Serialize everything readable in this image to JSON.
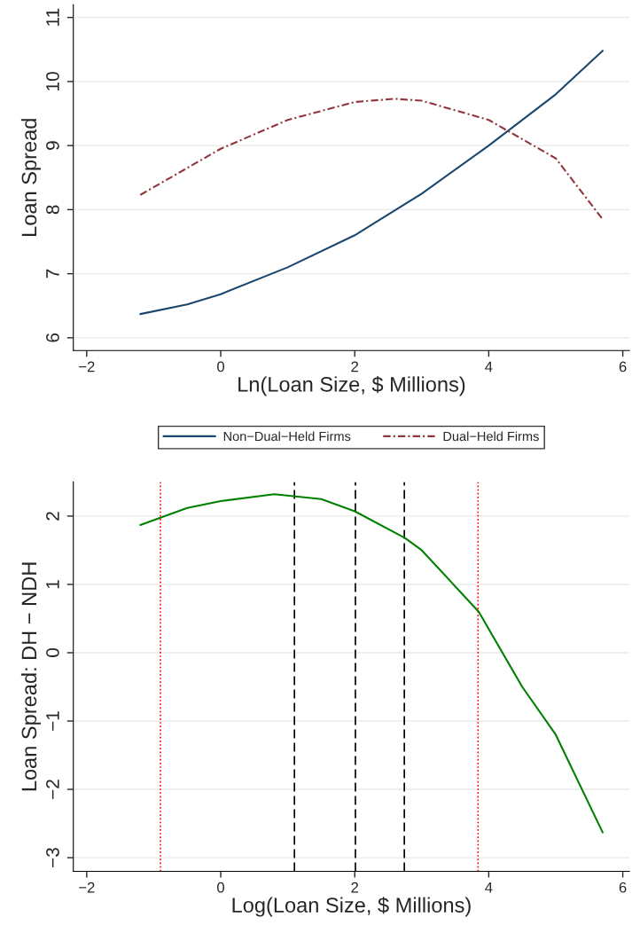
{
  "chart_data": [
    {
      "type": "line",
      "xlabel": "Ln(Loan Size, $ Millions)",
      "ylabel": "Loan Spread",
      "xlim": [
        -2.2,
        6.1
      ],
      "xticks": [
        {
          "value": -2,
          "label": "−2"
        },
        0,
        2,
        4,
        6
      ],
      "ylim": [
        5.8,
        11.2
      ],
      "yticks": [
        6,
        7,
        8,
        9,
        10,
        11
      ],
      "grid": "y",
      "legend": "bottom",
      "series": [
        {
          "name": "Non−Dual−Held Firms",
          "color": "#1a476f",
          "line_style": "solid",
          "x": [
            -1.2,
            -0.5,
            0,
            1,
            2,
            3,
            4,
            5,
            5.7
          ],
          "values": [
            6.37,
            6.52,
            6.68,
            7.1,
            7.6,
            8.25,
            9.0,
            9.8,
            10.48
          ]
        },
        {
          "name": "Dual−Held Firms",
          "color": "#90353b",
          "line_style": "dashed",
          "x": [
            -1.2,
            0,
            1,
            2,
            2.6,
            3,
            4,
            5,
            5.7
          ],
          "values": [
            8.23,
            8.95,
            9.4,
            9.68,
            9.73,
            9.7,
            9.4,
            8.8,
            7.85
          ]
        }
      ]
    },
    {
      "type": "line",
      "xlabel": "Log(Loan Size, $ Millions)",
      "ylabel": "Loan Spread: DH − NDH",
      "xlim": [
        -2.2,
        6.1
      ],
      "xticks": [
        {
          "value": -2,
          "label": "−2"
        },
        0,
        2,
        4,
        6
      ],
      "ylim": [
        -3.2,
        2.5
      ],
      "yticks": [
        {
          "value": -3,
          "label": "−3"
        },
        {
          "value": -2,
          "label": "−2"
        },
        {
          "value": -1,
          "label": "−1"
        },
        0,
        1,
        2
      ],
      "grid": "y",
      "series": [
        {
          "color": "#008000",
          "line_style": "solid",
          "x": [
            -1.2,
            -0.5,
            0,
            0.8,
            1.5,
            2,
            2.75,
            3,
            3.85,
            4.5,
            5,
            5.7
          ],
          "values": [
            1.87,
            2.12,
            2.22,
            2.32,
            2.25,
            2.07,
            1.68,
            1.5,
            0.6,
            -0.5,
            -1.2,
            -2.63
          ]
        }
      ],
      "ref_lines": [
        {
          "axis": "x",
          "value": -0.9,
          "color": "#ff0000",
          "line_style": "dotted"
        },
        {
          "axis": "x",
          "value": 3.84,
          "color": "#ff0000",
          "line_style": "dotted"
        },
        {
          "axis": "x",
          "value": 1.1,
          "color": "#000000",
          "line_style": "dashed"
        },
        {
          "axis": "x",
          "value": 2.01,
          "color": "#000000",
          "line_style": "dashed"
        },
        {
          "axis": "x",
          "value": 2.74,
          "color": "#000000",
          "line_style": "dashed"
        }
      ]
    }
  ]
}
